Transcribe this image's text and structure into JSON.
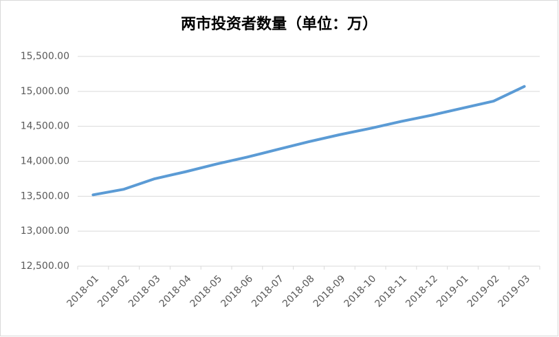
{
  "chart_data": {
    "type": "line",
    "title": "两市投资者数量（单位：万）",
    "categories": [
      "2018-01",
      "2018-02",
      "2018-03",
      "2018-04",
      "2018-05",
      "2018-06",
      "2018-07",
      "2018-08",
      "2018-09",
      "2018-10",
      "2018-11",
      "2018-12",
      "2019-01",
      "2019-02",
      "2019-03"
    ],
    "series": [
      {
        "name": "两市投资者数量",
        "color": "#5b9bd5",
        "values": [
          13520,
          13600,
          13750,
          13850,
          13960,
          14060,
          14170,
          14280,
          14380,
          14470,
          14570,
          14660,
          14760,
          14860,
          15070
        ]
      }
    ],
    "ylim": [
      12500,
      15500
    ],
    "yticks": [
      {
        "value": 12500,
        "label": "12,500.00"
      },
      {
        "value": 13000,
        "label": "13,000.00"
      },
      {
        "value": 13500,
        "label": "13,500.00"
      },
      {
        "value": 14000,
        "label": "14,000.00"
      },
      {
        "value": 14500,
        "label": "14,500.00"
      },
      {
        "value": 15000,
        "label": "15,000.00"
      },
      {
        "value": 15500,
        "label": "15,500.00"
      }
    ],
    "grid": true
  }
}
